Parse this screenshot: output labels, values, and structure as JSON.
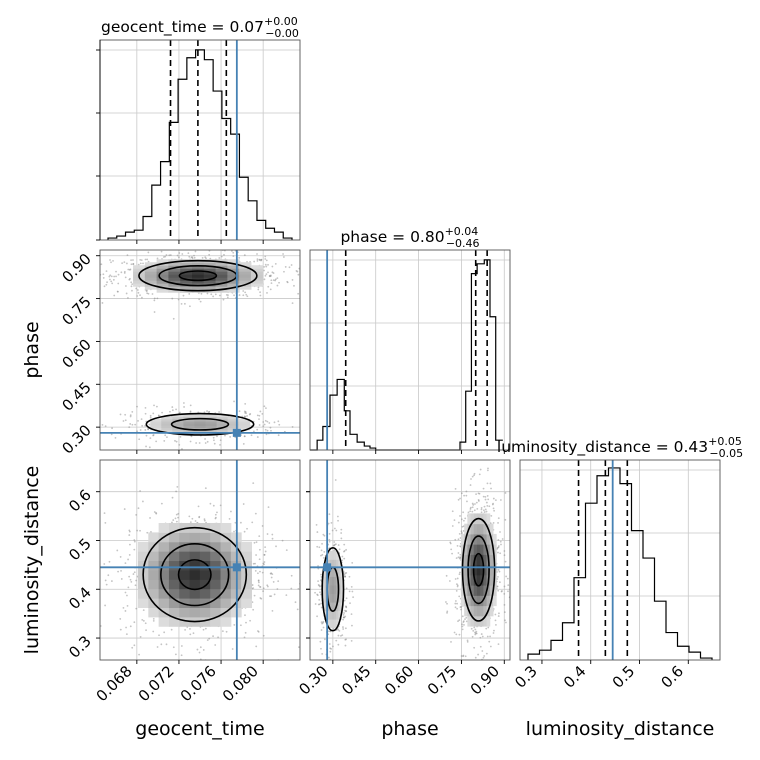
{
  "chart_data": {
    "type": "corner",
    "parameters": [
      {
        "name": "geocent_time",
        "range": [
          0.0645,
          0.0835
        ],
        "ticks": [
          0.068,
          0.072,
          0.076,
          0.08
        ],
        "tick_labels": [
          "0.068",
          "0.072",
          "0.076",
          "0.080"
        ],
        "truth": 0.0775,
        "quantiles": [
          0.0712,
          0.0738,
          0.0765
        ],
        "title": {
          "base": "geocent_time = 0.07",
          "plus": "+0.00",
          "minus": "−0.00"
        },
        "hist": [
          0.01,
          0.02,
          0.04,
          0.05,
          0.12,
          0.28,
          0.4,
          0.6,
          0.82,
          0.93,
          0.97,
          0.92,
          0.76,
          0.62,
          0.54,
          0.32,
          0.2,
          0.1,
          0.06,
          0.04,
          0.01
        ]
      },
      {
        "name": "phase",
        "range": [
          0.22,
          0.92
        ],
        "ticks": [
          0.3,
          0.45,
          0.6,
          0.75,
          0.9
        ],
        "tick_labels": [
          "0.30",
          "0.45",
          "0.60",
          "0.75",
          "0.90"
        ],
        "truth": 0.28,
        "quantiles": [
          0.345,
          0.8,
          0.84
        ],
        "title": {
          "base": "phase = 0.80",
          "plus": "+0.04",
          "minus": "−0.46"
        },
        "hist": [
          [
            0.22,
            0.0
          ],
          [
            0.245,
            0.05
          ],
          [
            0.265,
            0.12
          ],
          [
            0.29,
            0.28
          ],
          [
            0.315,
            0.36
          ],
          [
            0.34,
            0.2
          ],
          [
            0.36,
            0.08
          ],
          [
            0.385,
            0.04
          ],
          [
            0.41,
            0.02
          ],
          [
            0.43,
            0.01
          ],
          [
            0.45,
            0.0
          ],
          [
            0.72,
            0.0
          ],
          [
            0.745,
            0.04
          ],
          [
            0.765,
            0.3
          ],
          [
            0.785,
            0.9
          ],
          [
            0.805,
            0.95
          ],
          [
            0.83,
            0.97
          ],
          [
            0.85,
            0.68
          ],
          [
            0.87,
            0.05
          ],
          [
            0.895,
            0.0
          ]
        ]
      },
      {
        "name": "luminosity_distance",
        "range": [
          0.255,
          0.665
        ],
        "ticks": [
          0.3,
          0.4,
          0.5,
          0.6
        ],
        "tick_labels": [
          "0.3",
          "0.4",
          "0.5",
          "0.6"
        ],
        "truth": 0.445,
        "quantiles": [
          0.375,
          0.43,
          0.475
        ],
        "title": {
          "base": "luminosity_distance = 0.43",
          "plus": "+0.05",
          "minus": "−0.05"
        },
        "hist": [
          0.03,
          0.05,
          0.1,
          0.19,
          0.42,
          0.8,
          0.94,
          0.98,
          0.9,
          0.66,
          0.52,
          0.3,
          0.14,
          0.07,
          0.04,
          0.01
        ]
      }
    ],
    "axis_labels": {
      "x": [
        "geocent_time",
        "phase",
        "luminosity_distance"
      ],
      "y": [
        "phase",
        "luminosity_distance"
      ]
    },
    "truth_color": "#4682b4",
    "contour_clusters": {
      "phase_vs_geocent_time": [
        {
          "cx": 0.0738,
          "cy": 0.83,
          "sx": 0.0032,
          "sy": 0.03,
          "w": 1.0
        },
        {
          "cx": 0.074,
          "cy": 0.31,
          "sx": 0.003,
          "sy": 0.022,
          "w": 0.45
        }
      ],
      "luminosity_distance_vs_geocent_time": [
        {
          "cx": 0.0735,
          "cy": 0.43,
          "sx": 0.0028,
          "sy": 0.055,
          "w": 1.0
        }
      ],
      "luminosity_distance_vs_phase": [
        {
          "cx": 0.3,
          "cy": 0.4,
          "sx": 0.022,
          "sy": 0.05,
          "w": 0.45
        },
        {
          "cx": 0.81,
          "cy": 0.44,
          "sx": 0.032,
          "sy": 0.06,
          "w": 1.0
        }
      ]
    }
  }
}
